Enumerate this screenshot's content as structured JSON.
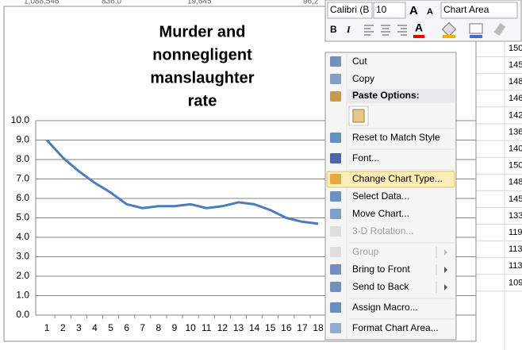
{
  "spreadsheet": {
    "top_row": [
      "1,088,546",
      "836.0",
      "19,645",
      "96,2"
    ],
    "right_column": [
      "150",
      "145",
      "148",
      "146",
      "142",
      "136",
      "140",
      "150",
      "148",
      "145",
      "133",
      "119",
      "113",
      "113",
      "109"
    ]
  },
  "chart_data": {
    "type": "line",
    "title": [
      "Murder and",
      "nonnegligent",
      "manslaughter",
      "rate"
    ],
    "x": [
      1,
      2,
      3,
      4,
      5,
      6,
      7,
      8,
      9,
      10,
      11,
      12,
      13,
      14,
      15,
      16,
      17,
      18
    ],
    "series": [
      {
        "color": "#4a7ebb",
        "values": [
          9.0,
          8.1,
          7.4,
          6.8,
          6.3,
          5.7,
          5.5,
          5.6,
          5.6,
          5.7,
          5.5,
          5.6,
          5.8,
          5.7,
          5.4,
          5.0,
          4.8,
          4.7
        ]
      }
    ],
    "ylim": [
      0,
      10
    ],
    "yticks": [
      {
        "value": 0,
        "label": "0.0"
      },
      {
        "value": 1,
        "label": "1.0"
      },
      {
        "value": 2,
        "label": "2.0"
      },
      {
        "value": 3,
        "label": "3.0"
      },
      {
        "value": 4,
        "label": "4.0"
      },
      {
        "value": 5,
        "label": "5.0"
      },
      {
        "value": 6,
        "label": "6.0"
      },
      {
        "value": 7,
        "label": "7.0"
      },
      {
        "value": 8,
        "label": "8.0"
      },
      {
        "value": 9,
        "label": "9.0"
      },
      {
        "value": 10,
        "label": "10.0"
      }
    ],
    "grid": true
  },
  "mini_toolbar": {
    "font": "Calibri (B",
    "size": "10",
    "element": "Chart Area",
    "bold": "B",
    "italic": "I"
  },
  "context_menu": {
    "items": [
      {
        "label": "Cut"
      },
      {
        "label": "Copy"
      },
      {
        "label": "Paste Options:",
        "header": true
      },
      {
        "label": "Reset to Match Style",
        "separator_before": true
      },
      {
        "label": "Font...",
        "separator_before": true
      },
      {
        "label": "Change Chart Type...",
        "separator_before": true,
        "highlighted": true
      },
      {
        "label": "Select Data..."
      },
      {
        "label": "Move Chart..."
      },
      {
        "label": "3-D Rotation...",
        "disabled": true
      },
      {
        "label": "Group",
        "separator_before": true,
        "disabled": true,
        "submenu": true
      },
      {
        "label": "Bring to Front",
        "submenu": true
      },
      {
        "label": "Send to Back",
        "submenu": true
      },
      {
        "label": "Assign Macro...",
        "separator_before": true
      },
      {
        "label": "Format Chart Area...",
        "separator_before": true
      }
    ]
  }
}
